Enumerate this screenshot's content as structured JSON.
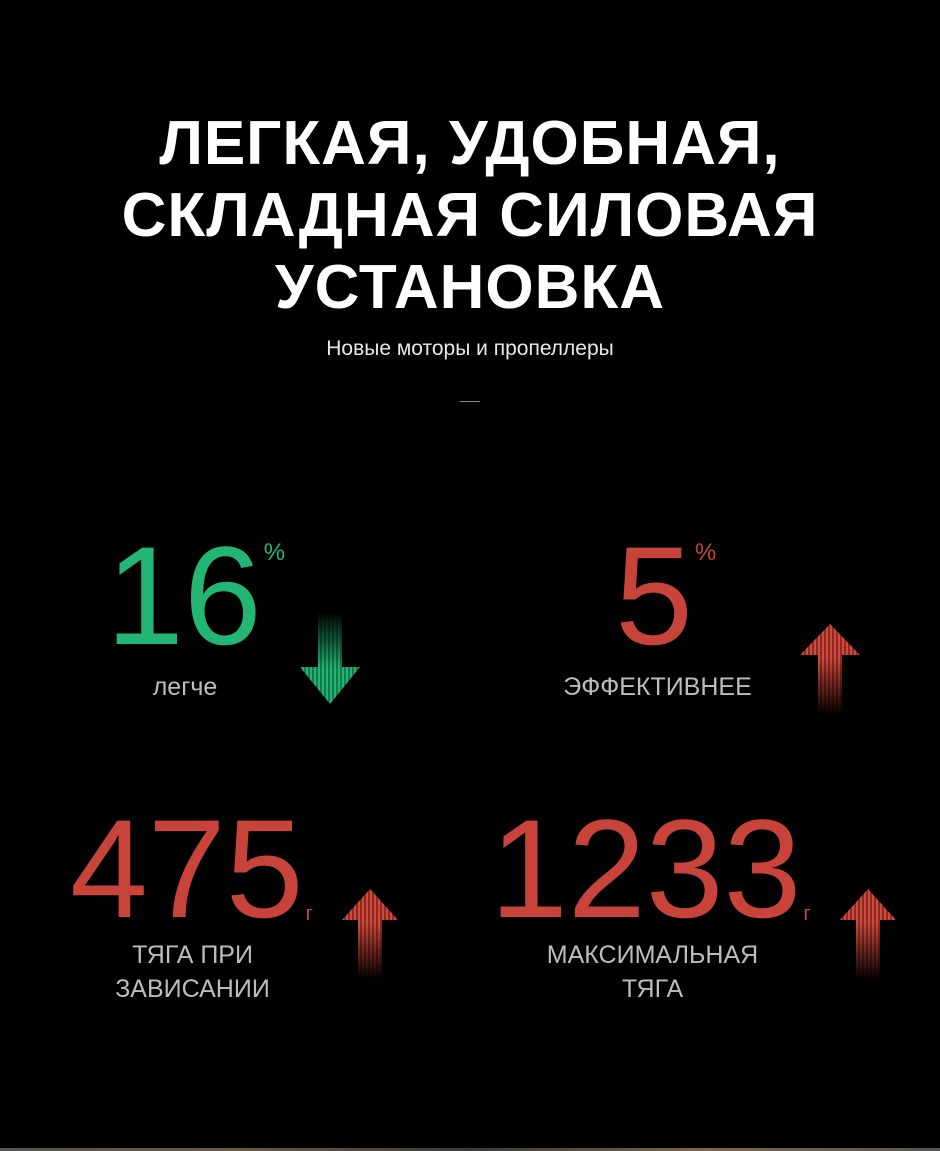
{
  "header": {
    "title_lines": [
      "ЛЕГКАЯ, УДОБНАЯ,",
      "СКЛАДНАЯ СИЛОВАЯ",
      "УСТАНОВКА"
    ],
    "subtitle": "Новые моторы и пропеллеры"
  },
  "colors": {
    "green": "#22b573",
    "red": "#c8443a",
    "label": "#bdbdbd"
  },
  "stats": [
    {
      "value": "16",
      "unit": "%",
      "label_lines": [
        "легче"
      ],
      "icon": "arrow-down-icon",
      "color": "#22b573"
    },
    {
      "value": "5",
      "unit": "%",
      "label_lines": [
        "ЭФФЕКТИВНЕЕ"
      ],
      "icon": "arrow-up-icon",
      "color": "#c8443a"
    },
    {
      "value": "475",
      "unit": "г",
      "label_lines": [
        "ТЯГА ПРИ",
        "ЗАВИСАНИИ"
      ],
      "icon": "arrow-up-icon",
      "color": "#c8443a"
    },
    {
      "value": "1233",
      "unit": "г",
      "label_lines": [
        "МАКСИМАЛЬНАЯ",
        "ТЯГА"
      ],
      "icon": "arrow-up-icon",
      "color": "#c8443a"
    }
  ]
}
